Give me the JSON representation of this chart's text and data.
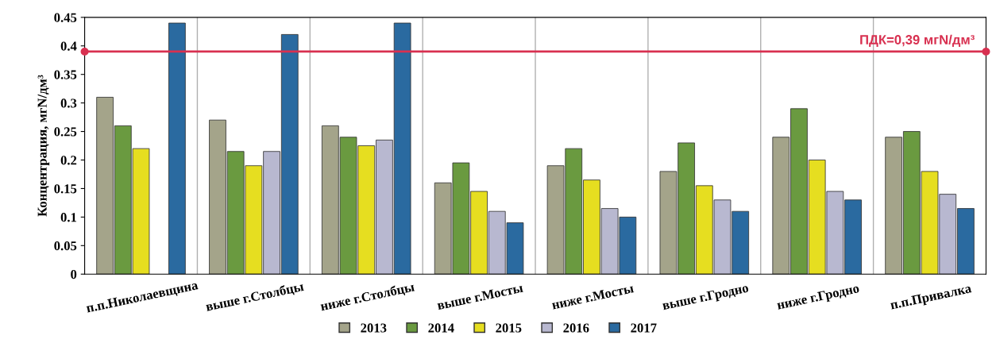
{
  "chart_data": {
    "type": "bar",
    "ylabel": "Концентрация, мгN/дм³",
    "categories": [
      "п.п.Николаевщина",
      "выше г.Столбцы",
      "ниже г.Столбцы",
      "выше г.Мосты",
      "ниже г.Мосты",
      "выше г.Гродно",
      "ниже г.Гродно",
      "п.п.Привалка"
    ],
    "series": [
      {
        "name": "2013",
        "color": "#a4a48a",
        "values": [
          0.31,
          0.27,
          0.26,
          0.16,
          0.19,
          0.18,
          0.24,
          0.24
        ]
      },
      {
        "name": "2014",
        "color": "#6a9a40",
        "values": [
          0.26,
          0.215,
          0.24,
          0.195,
          0.22,
          0.23,
          0.29,
          0.25
        ]
      },
      {
        "name": "2015",
        "color": "#e6de20",
        "values": [
          0.22,
          0.19,
          0.225,
          0.145,
          0.165,
          0.155,
          0.2,
          0.18
        ]
      },
      {
        "name": "2016",
        "color": "#b8b8d0",
        "values": [
          null,
          0.215,
          0.235,
          0.11,
          0.115,
          0.13,
          0.145,
          0.14
        ]
      },
      {
        "name": "2017",
        "color": "#2a6aa0",
        "values": [
          0.44,
          0.42,
          0.44,
          0.09,
          0.1,
          0.11,
          0.13,
          0.115
        ]
      }
    ],
    "ylim": [
      0,
      0.45
    ],
    "yticks": [
      0,
      0.05,
      0.1,
      0.15,
      0.2,
      0.25,
      0.3,
      0.35,
      0.4,
      0.45
    ],
    "ref_lines": [
      {
        "axis": "y",
        "value": 0.39,
        "label": "ПДК=0,39 мгN/дм³",
        "color": "#d83050"
      }
    ],
    "grid": "x",
    "legend": "bottom"
  }
}
